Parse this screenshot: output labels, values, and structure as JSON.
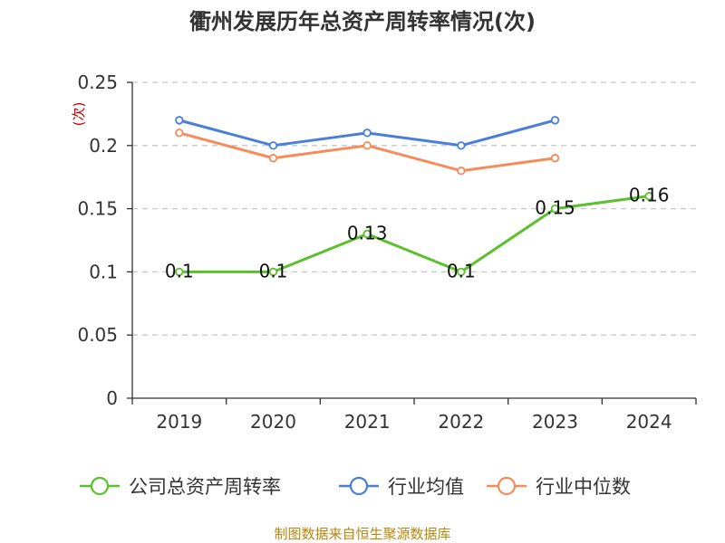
{
  "chart_data": {
    "type": "line",
    "title": "衢州发展历年总资产周转率情况(次)",
    "ylabel": "(次)",
    "xlabel": "",
    "categories": [
      "2019",
      "2020",
      "2021",
      "2022",
      "2023",
      "2024"
    ],
    "ylim": [
      0,
      0.25
    ],
    "yticks": [
      "0",
      "0.05",
      "0.1",
      "0.15",
      "0.2",
      "0.25"
    ],
    "grid": true,
    "legend_position": "bottom",
    "series": [
      {
        "name": "公司总资产周转率",
        "color": "#5ac02b",
        "values": [
          0.1,
          0.1,
          0.13,
          0.1,
          0.15,
          0.16
        ],
        "data_labels": [
          "0.1",
          "0.1",
          "0.13",
          "0.1",
          "0.15",
          "0.16"
        ]
      },
      {
        "name": "行业均值",
        "color": "#4a7fd8",
        "values": [
          0.22,
          0.2,
          0.21,
          0.2,
          0.22,
          null
        ]
      },
      {
        "name": "行业中位数",
        "color": "#f58c59",
        "values": [
          0.21,
          0.19,
          0.2,
          0.18,
          0.19,
          null
        ]
      }
    ]
  },
  "source": "制图数据来自恒生聚源数据库"
}
